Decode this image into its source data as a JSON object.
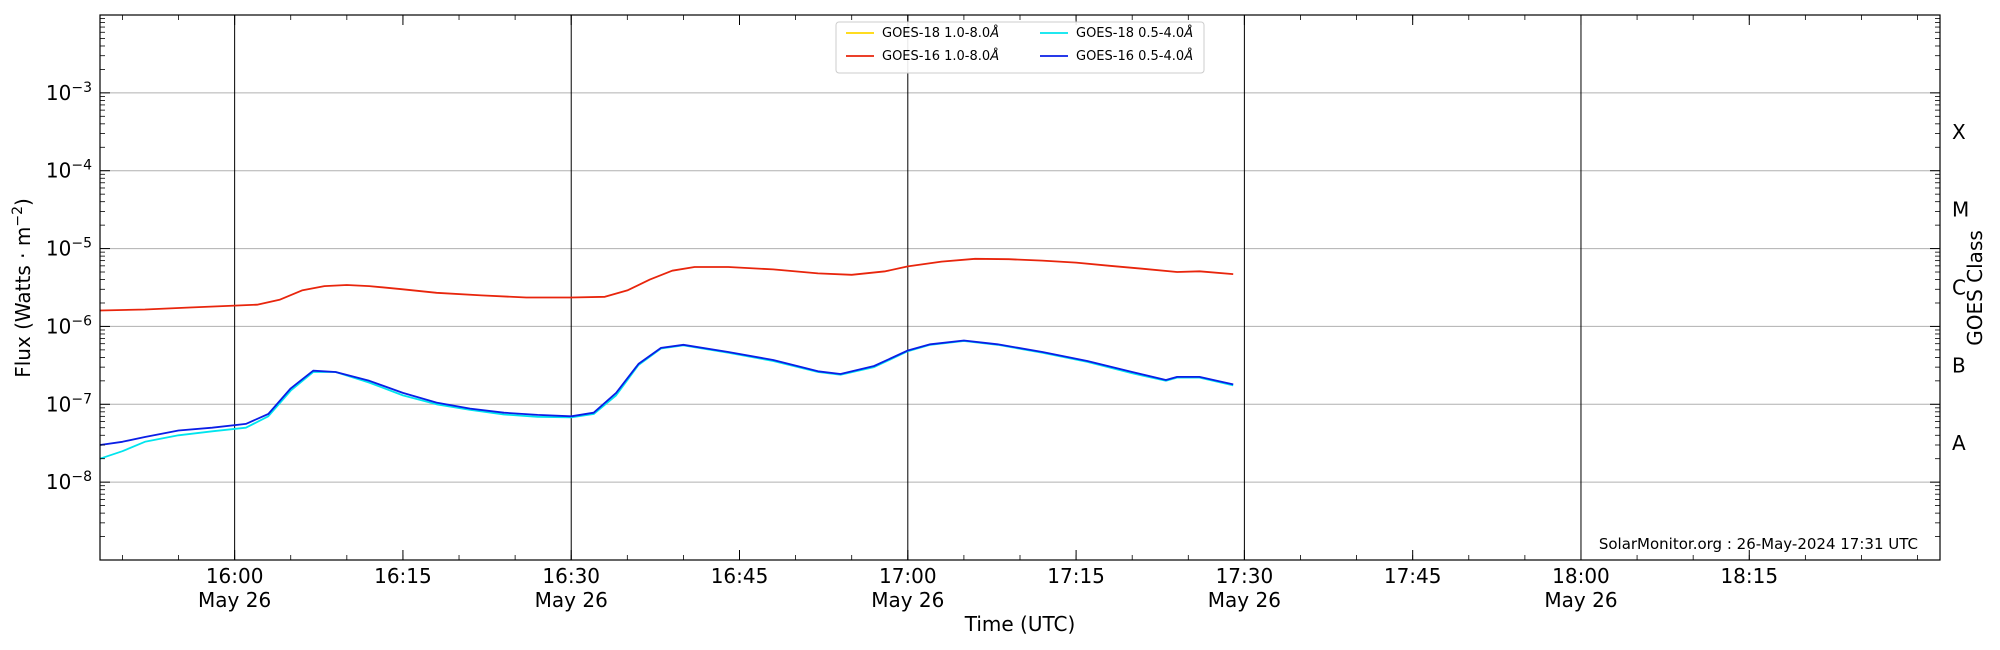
{
  "chart_data": {
    "type": "line",
    "xlabel": "Time (UTC)",
    "ylabel": "Flux (Watts · m⁻²)",
    "right_label": "GOES Class",
    "credit": "SolarMonitor.org : 26-May-2024 17:31 UTC",
    "yscale": "log",
    "ylim": [
      1e-09,
      0.01
    ],
    "xlim": [
      "2024-05-26 15:48",
      "2024-05-26 18:32"
    ],
    "grid": "horizontal",
    "legend_position": "top-center",
    "x_ticks": [
      {
        "time": "2024-05-26 16:00",
        "label": "16:00",
        "date": "May 26"
      },
      {
        "time": "2024-05-26 16:15",
        "label": "16:15",
        "date": ""
      },
      {
        "time": "2024-05-26 16:30",
        "label": "16:30",
        "date": "May 26"
      },
      {
        "time": "2024-05-26 16:45",
        "label": "16:45",
        "date": ""
      },
      {
        "time": "2024-05-26 17:00",
        "label": "17:00",
        "date": "May 26"
      },
      {
        "time": "2024-05-26 17:15",
        "label": "17:15",
        "date": ""
      },
      {
        "time": "2024-05-26 17:30",
        "label": "17:30",
        "date": "May 26"
      },
      {
        "time": "2024-05-26 17:45",
        "label": "17:45",
        "date": ""
      },
      {
        "time": "2024-05-26 18:00",
        "label": "18:00",
        "date": "May 26"
      },
      {
        "time": "2024-05-26 18:15",
        "label": "18:15",
        "date": ""
      }
    ],
    "vertical_lines": [
      "2024-05-26 16:00",
      "2024-05-26 16:30",
      "2024-05-26 17:00",
      "2024-05-26 17:30",
      "2024-05-26 18:00"
    ],
    "y_ticks": [
      {
        "value": 1e-08,
        "label": "10",
        "exp": "−8"
      },
      {
        "value": 1e-07,
        "label": "10",
        "exp": "−7"
      },
      {
        "value": 1e-06,
        "label": "10",
        "exp": "−6"
      },
      {
        "value": 1e-05,
        "label": "10",
        "exp": "−5"
      },
      {
        "value": 0.0001,
        "label": "10",
        "exp": "−4"
      },
      {
        "value": 0.001,
        "label": "10",
        "exp": "−3"
      }
    ],
    "goes_classes": [
      {
        "label": "A",
        "value": 3.16e-08
      },
      {
        "label": "B",
        "value": 3.16e-07
      },
      {
        "label": "C",
        "value": 3.16e-06
      },
      {
        "label": "M",
        "value": 3.16e-05
      },
      {
        "label": "X",
        "value": 0.000316
      }
    ],
    "legend": [
      {
        "series": "GOES-18 1.0-8.0",
        "unit": "Å",
        "color": "#ffd700"
      },
      {
        "series": "GOES-18 0.5-4.0",
        "unit": "Å",
        "color": "#00e5ee"
      },
      {
        "series": "GOES-16 1.0-8.0",
        "unit": "Å",
        "color": "#e8250c"
      },
      {
        "series": "GOES-16 0.5-4.0",
        "unit": "Å",
        "color": "#0a1ee6"
      }
    ],
    "series": [
      {
        "name": "GOES-16 1.0-8.0Å",
        "color": "#e8250c",
        "points": [
          [
            "2024-05-26 15:48",
            1.6e-06
          ],
          [
            "2024-05-26 15:52",
            1.65e-06
          ],
          [
            "2024-05-26 15:56",
            1.75e-06
          ],
          [
            "2024-05-26 16:00",
            1.85e-06
          ],
          [
            "2024-05-26 16:02",
            1.9e-06
          ],
          [
            "2024-05-26 16:04",
            2.2e-06
          ],
          [
            "2024-05-26 16:06",
            2.9e-06
          ],
          [
            "2024-05-26 16:08",
            3.3e-06
          ],
          [
            "2024-05-26 16:10",
            3.4e-06
          ],
          [
            "2024-05-26 16:12",
            3.3e-06
          ],
          [
            "2024-05-26 16:15",
            3e-06
          ],
          [
            "2024-05-26 16:18",
            2.7e-06
          ],
          [
            "2024-05-26 16:22",
            2.5e-06
          ],
          [
            "2024-05-26 16:26",
            2.35e-06
          ],
          [
            "2024-05-26 16:30",
            2.35e-06
          ],
          [
            "2024-05-26 16:33",
            2.4e-06
          ],
          [
            "2024-05-26 16:35",
            2.9e-06
          ],
          [
            "2024-05-26 16:37",
            4e-06
          ],
          [
            "2024-05-26 16:39",
            5.2e-06
          ],
          [
            "2024-05-26 16:41",
            5.8e-06
          ],
          [
            "2024-05-26 16:44",
            5.8e-06
          ],
          [
            "2024-05-26 16:48",
            5.4e-06
          ],
          [
            "2024-05-26 16:52",
            4.8e-06
          ],
          [
            "2024-05-26 16:55",
            4.6e-06
          ],
          [
            "2024-05-26 16:58",
            5.1e-06
          ],
          [
            "2024-05-26 17:00",
            5.9e-06
          ],
          [
            "2024-05-26 17:03",
            6.8e-06
          ],
          [
            "2024-05-26 17:06",
            7.4e-06
          ],
          [
            "2024-05-26 17:09",
            7.3e-06
          ],
          [
            "2024-05-26 17:12",
            7e-06
          ],
          [
            "2024-05-26 17:15",
            6.6e-06
          ],
          [
            "2024-05-26 17:18",
            6e-06
          ],
          [
            "2024-05-26 17:21",
            5.5e-06
          ],
          [
            "2024-05-26 17:24",
            5e-06
          ],
          [
            "2024-05-26 17:26",
            5.1e-06
          ],
          [
            "2024-05-26 17:29",
            4.7e-06
          ]
        ]
      },
      {
        "name": "GOES-18 0.5-4.0Å",
        "color": "#00e5ee",
        "points": [
          [
            "2024-05-26 15:48",
            2e-08
          ],
          [
            "2024-05-26 15:50",
            2.5e-08
          ],
          [
            "2024-05-26 15:52",
            3.3e-08
          ],
          [
            "2024-05-26 15:55",
            4e-08
          ],
          [
            "2024-05-26 15:58",
            4.5e-08
          ],
          [
            "2024-05-26 16:01",
            5e-08
          ],
          [
            "2024-05-26 16:03",
            7e-08
          ],
          [
            "2024-05-26 16:05",
            1.5e-07
          ],
          [
            "2024-05-26 16:07",
            2.6e-07
          ],
          [
            "2024-05-26 16:09",
            2.6e-07
          ],
          [
            "2024-05-26 16:12",
            1.9e-07
          ],
          [
            "2024-05-26 16:15",
            1.3e-07
          ],
          [
            "2024-05-26 16:18",
            1e-07
          ],
          [
            "2024-05-26 16:21",
            8.5e-08
          ],
          [
            "2024-05-26 16:24",
            7.4e-08
          ],
          [
            "2024-05-26 16:27",
            6.9e-08
          ],
          [
            "2024-05-26 16:30",
            6.8e-08
          ],
          [
            "2024-05-26 16:32",
            7.5e-08
          ],
          [
            "2024-05-26 16:34",
            1.3e-07
          ],
          [
            "2024-05-26 16:36",
            3.2e-07
          ],
          [
            "2024-05-26 16:38",
            5.2e-07
          ],
          [
            "2024-05-26 16:40",
            5.7e-07
          ],
          [
            "2024-05-26 16:44",
            4.6e-07
          ],
          [
            "2024-05-26 16:48",
            3.6e-07
          ],
          [
            "2024-05-26 16:52",
            2.6e-07
          ],
          [
            "2024-05-26 16:54",
            2.4e-07
          ],
          [
            "2024-05-26 16:57",
            3e-07
          ],
          [
            "2024-05-26 17:00",
            4.8e-07
          ],
          [
            "2024-05-26 17:02",
            5.8e-07
          ],
          [
            "2024-05-26 17:05",
            6.5e-07
          ],
          [
            "2024-05-26 17:08",
            5.8e-07
          ],
          [
            "2024-05-26 17:12",
            4.6e-07
          ],
          [
            "2024-05-26 17:16",
            3.5e-07
          ],
          [
            "2024-05-26 17:20",
            2.5e-07
          ],
          [
            "2024-05-26 17:23",
            2e-07
          ],
          [
            "2024-05-26 17:24",
            2.2e-07
          ],
          [
            "2024-05-26 17:26",
            2.2e-07
          ],
          [
            "2024-05-26 17:29",
            1.75e-07
          ]
        ]
      },
      {
        "name": "GOES-16 0.5-4.0Å",
        "color": "#0a1ee6",
        "points": [
          [
            "2024-05-26 15:48",
            3e-08
          ],
          [
            "2024-05-26 15:50",
            3.3e-08
          ],
          [
            "2024-05-26 15:52",
            3.8e-08
          ],
          [
            "2024-05-26 15:55",
            4.6e-08
          ],
          [
            "2024-05-26 15:58",
            5e-08
          ],
          [
            "2024-05-26 16:01",
            5.6e-08
          ],
          [
            "2024-05-26 16:03",
            7.5e-08
          ],
          [
            "2024-05-26 16:05",
            1.6e-07
          ],
          [
            "2024-05-26 16:07",
            2.7e-07
          ],
          [
            "2024-05-26 16:09",
            2.6e-07
          ],
          [
            "2024-05-26 16:12",
            2e-07
          ],
          [
            "2024-05-26 16:15",
            1.4e-07
          ],
          [
            "2024-05-26 16:18",
            1.05e-07
          ],
          [
            "2024-05-26 16:21",
            8.8e-08
          ],
          [
            "2024-05-26 16:24",
            7.8e-08
          ],
          [
            "2024-05-26 16:27",
            7.3e-08
          ],
          [
            "2024-05-26 16:30",
            7e-08
          ],
          [
            "2024-05-26 16:32",
            7.8e-08
          ],
          [
            "2024-05-26 16:34",
            1.4e-07
          ],
          [
            "2024-05-26 16:36",
            3.3e-07
          ],
          [
            "2024-05-26 16:38",
            5.3e-07
          ],
          [
            "2024-05-26 16:40",
            5.8e-07
          ],
          [
            "2024-05-26 16:44",
            4.7e-07
          ],
          [
            "2024-05-26 16:48",
            3.7e-07
          ],
          [
            "2024-05-26 16:52",
            2.65e-07
          ],
          [
            "2024-05-26 16:54",
            2.45e-07
          ],
          [
            "2024-05-26 16:57",
            3.1e-07
          ],
          [
            "2024-05-26 17:00",
            4.9e-07
          ],
          [
            "2024-05-26 17:02",
            5.9e-07
          ],
          [
            "2024-05-26 17:05",
            6.6e-07
          ],
          [
            "2024-05-26 17:08",
            5.9e-07
          ],
          [
            "2024-05-26 17:12",
            4.7e-07
          ],
          [
            "2024-05-26 17:16",
            3.6e-07
          ],
          [
            "2024-05-26 17:20",
            2.6e-07
          ],
          [
            "2024-05-26 17:23",
            2.05e-07
          ],
          [
            "2024-05-26 17:24",
            2.25e-07
          ],
          [
            "2024-05-26 17:26",
            2.25e-07
          ],
          [
            "2024-05-26 17:29",
            1.8e-07
          ]
        ]
      }
    ]
  }
}
